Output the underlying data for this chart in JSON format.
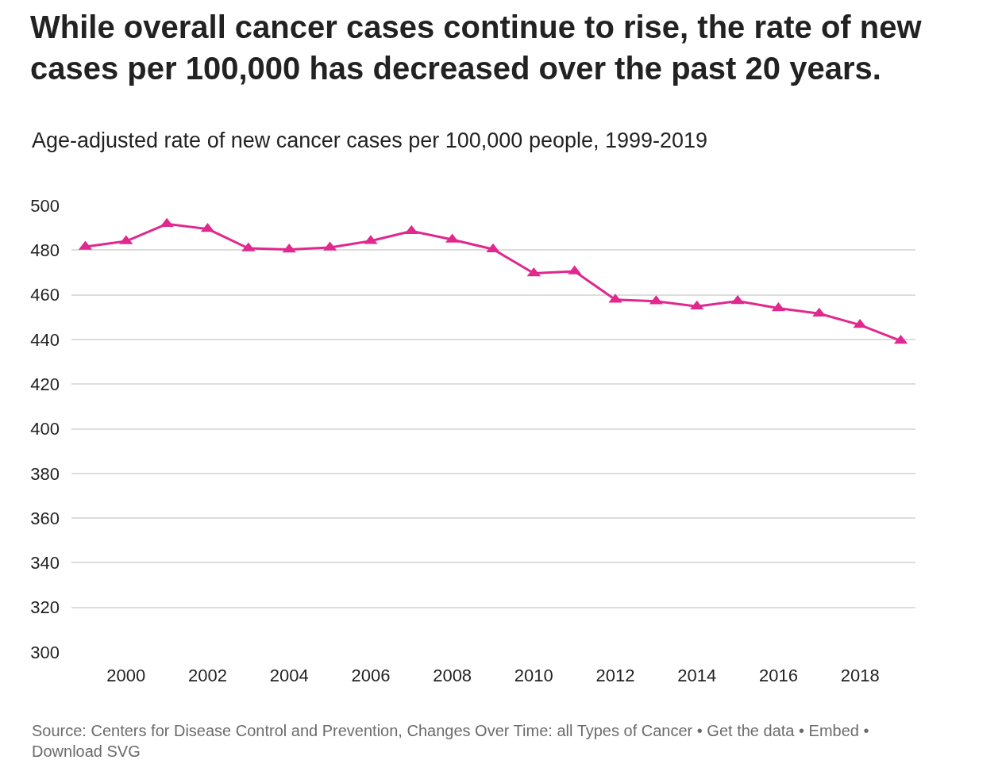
{
  "chart_data": {
    "type": "line",
    "title": "While overall cancer cases continue to rise, the rate of new cases per 100,000 has decreased over the past 20 years.",
    "subtitle": "Age-adjusted rate of new cancer cases per 100,000 people, 1999-2019",
    "x": [
      1999,
      2000,
      2001,
      2002,
      2003,
      2004,
      2005,
      2006,
      2007,
      2008,
      2009,
      2010,
      2011,
      2012,
      2013,
      2014,
      2015,
      2016,
      2017,
      2018,
      2019
    ],
    "values": [
      481.5,
      484.0,
      491.7,
      489.5,
      480.8,
      480.3,
      481.2,
      484.1,
      488.5,
      484.7,
      480.4,
      469.6,
      470.5,
      457.8,
      457.1,
      454.8,
      457.2,
      454.0,
      451.6,
      446.5,
      439.4
    ],
    "color": "#e0288e",
    "marker": "triangle",
    "xlim": [
      1998.66,
      2019.36
    ],
    "xticks": [
      2000,
      2002,
      2004,
      2006,
      2008,
      2010,
      2012,
      2014,
      2016,
      2018
    ],
    "ylim": [
      300,
      500
    ],
    "yticks": [
      300,
      320,
      340,
      360,
      380,
      400,
      420,
      440,
      460,
      480,
      500
    ],
    "grid": "y",
    "annotations": [
      "Source: Centers for Disease Control and Prevention, Changes Over Time: all Types of Cancer • Get the data • Embed • Download SVG"
    ]
  }
}
